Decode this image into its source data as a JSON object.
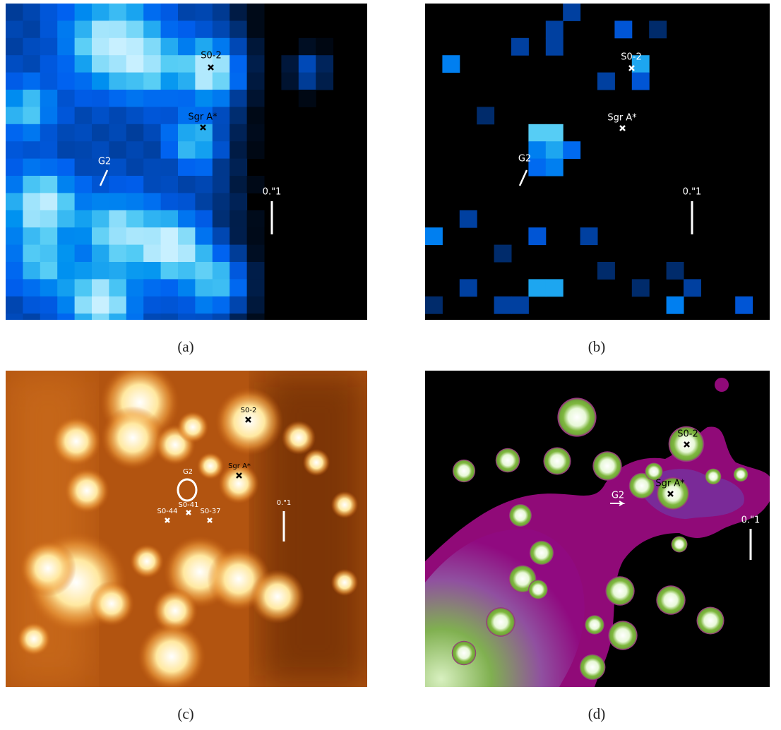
{
  "panels": [
    {
      "caption": "(a)",
      "labels": [
        "S0-2",
        "Sgr A*",
        "G2"
      ],
      "scale_label": "0.\"1"
    },
    {
      "caption": "(b)",
      "labels": [
        "S0-2",
        "Sgr A*",
        "G2"
      ],
      "scale_label": "0.\"1"
    },
    {
      "caption": "(c)",
      "labels": [
        "S0-2",
        "Sgr A*",
        "G2",
        "S0-41",
        "S0-44",
        "S0-37"
      ],
      "scale_label": "0.\"1"
    },
    {
      "caption": "(d)",
      "labels": [
        "S0-2",
        "Sgr A*",
        "G2"
      ],
      "scale_label": "0.\"1"
    }
  ]
}
